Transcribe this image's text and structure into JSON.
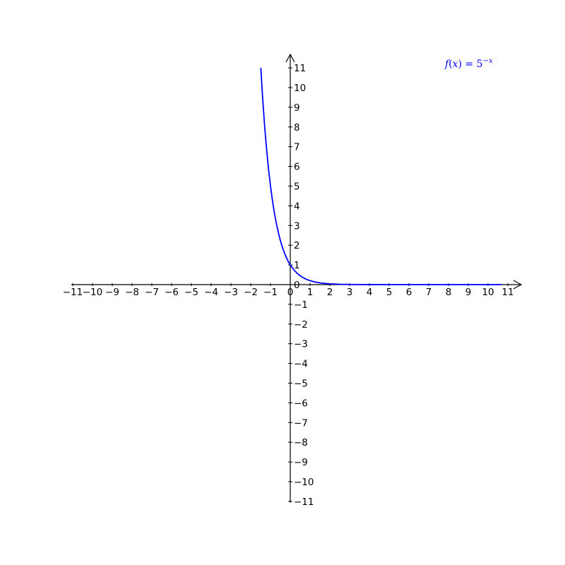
{
  "chart_data": {
    "type": "line",
    "xlim": [
      -11,
      11
    ],
    "ylim": [
      -11,
      11
    ],
    "x_ticks": [
      -11,
      -10,
      -9,
      -8,
      -7,
      -6,
      -5,
      -4,
      -3,
      -2,
      -1,
      0,
      1,
      2,
      3,
      4,
      5,
      6,
      7,
      8,
      9,
      10,
      11
    ],
    "y_ticks": [
      -11,
      -10,
      -9,
      -8,
      -7,
      -6,
      -5,
      -4,
      -3,
      -2,
      -1,
      0,
      1,
      2,
      3,
      4,
      5,
      6,
      7,
      8,
      9,
      10,
      11
    ],
    "grid": false,
    "legend_position": "top-right",
    "series": [
      {
        "name": "f(x) = 5^{-x}",
        "color": "#0000ff",
        "x": [
          -1.49,
          -1.4,
          -1.3,
          -1.2,
          -1.1,
          -1.0,
          -0.9,
          -0.8,
          -0.7,
          -0.6,
          -0.5,
          -0.4,
          -0.3,
          -0.2,
          -0.1,
          0.0,
          0.2,
          0.4,
          0.6,
          0.8,
          1.0,
          1.25,
          1.5,
          1.75,
          2.0,
          2.5,
          3.0,
          4.0,
          5.0,
          6.0,
          7.0,
          8.0,
          9.0,
          10.0,
          10.7
        ],
        "y": [
          11.0,
          9.52,
          8.1,
          6.9,
          5.88,
          5.0,
          4.26,
          3.62,
          3.09,
          2.63,
          2.24,
          1.9,
          1.62,
          1.38,
          1.17,
          1.0,
          0.725,
          0.525,
          0.381,
          0.276,
          0.2,
          0.134,
          0.089,
          0.06,
          0.04,
          0.018,
          0.008,
          0.0016,
          0.0003,
          0.0001,
          0.0,
          0.0,
          0.0,
          0.0,
          0.0
        ]
      }
    ]
  }
}
